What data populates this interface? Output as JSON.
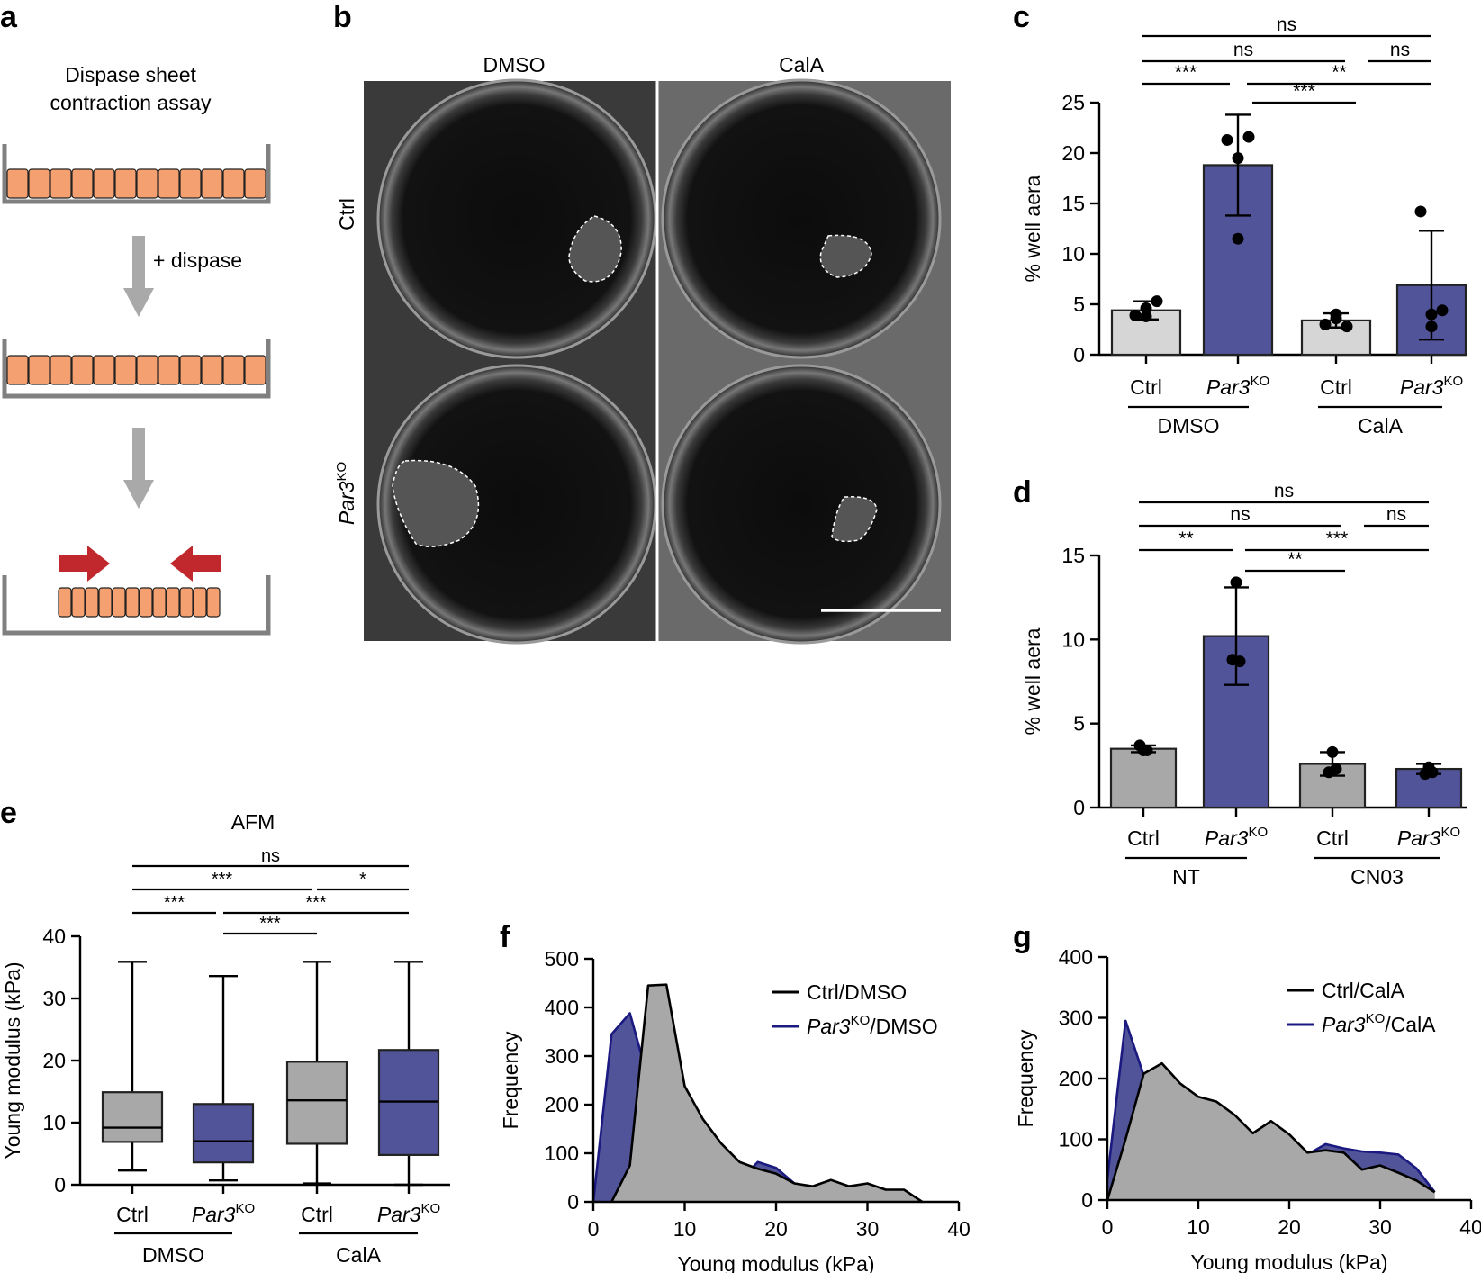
{
  "panel_a": {
    "label": "a",
    "title_line1": "Dispase sheet",
    "title_line2": "contraction assay",
    "step_label": "+ dispase",
    "colors": {
      "cell": "#f4a070",
      "dish": "#808080",
      "arrow_grey": "#a9a9a9",
      "arrow_red": "#c0282d"
    }
  },
  "panel_b": {
    "label": "b",
    "col_labels": [
      "DMSO",
      "CalA"
    ],
    "row_label_ctrl": "Ctrl",
    "row_label_par3": "Par3",
    "row_label_par3_sup": "KO"
  },
  "chart_data": [
    {
      "panel": "c",
      "type": "bar",
      "categories": [
        "Ctrl",
        "Par3KO",
        "Ctrl",
        "Par3KO"
      ],
      "category_main": [
        "Ctrl",
        "Par3",
        "Ctrl",
        "Par3"
      ],
      "category_sup": [
        "",
        "KO",
        "",
        "KO"
      ],
      "group_labels": [
        "DMSO",
        "CalA"
      ],
      "values": [
        4.4,
        18.8,
        3.4,
        6.9
      ],
      "errors": [
        0.9,
        5.0,
        0.7,
        5.4
      ],
      "points": [
        [
          3.9,
          5.3,
          3.8,
          4.6
        ],
        [
          21.3,
          21.6,
          19.5,
          11.5
        ],
        [
          3.0,
          2.8,
          4.0,
          3.6
        ],
        [
          14.2,
          4.4,
          4.0,
          2.8
        ]
      ],
      "bar_colors": [
        "#d6d6d6",
        "#52549a",
        "#d6d6d6",
        "#52549a"
      ],
      "ylabel": "% well aera",
      "ylim": [
        0,
        25
      ],
      "yticks": [
        0,
        5,
        10,
        15,
        20,
        25
      ],
      "significance": [
        {
          "from": 0,
          "to": 3,
          "label": "ns"
        },
        {
          "from": 0,
          "to": 2,
          "label": "ns"
        },
        {
          "from": 2,
          "to": 3,
          "label": "ns"
        },
        {
          "from": 0,
          "to": 1,
          "label": "***"
        },
        {
          "from": 1,
          "to": 3,
          "label": "**"
        },
        {
          "from": 1,
          "to": 2,
          "label": "***"
        }
      ]
    },
    {
      "panel": "d",
      "type": "bar",
      "categories": [
        "Ctrl",
        "Par3KO",
        "Ctrl",
        "Par3KO"
      ],
      "category_main": [
        "Ctrl",
        "Par3",
        "Ctrl",
        "Par3"
      ],
      "category_sup": [
        "",
        "KO",
        "",
        "KO"
      ],
      "group_labels": [
        "NT",
        "CN03"
      ],
      "values": [
        3.5,
        10.2,
        2.6,
        2.3
      ],
      "errors": [
        0.2,
        2.9,
        0.7,
        0.3
      ],
      "points": [
        [
          3.4,
          3.7,
          3.4
        ],
        [
          13.4,
          8.8,
          8.7
        ],
        [
          3.3,
          2.1,
          2.3
        ],
        [
          2.4,
          2.0,
          2.1
        ]
      ],
      "bar_colors": [
        "#a8a8a8",
        "#52549a",
        "#a8a8a8",
        "#52549a"
      ],
      "ylabel": "% well aera",
      "ylim": [
        0,
        15
      ],
      "yticks": [
        0,
        5,
        10,
        15
      ],
      "significance": [
        {
          "from": 0,
          "to": 3,
          "label": "ns"
        },
        {
          "from": 0,
          "to": 2,
          "label": "ns"
        },
        {
          "from": 2,
          "to": 3,
          "label": "ns"
        },
        {
          "from": 0,
          "to": 1,
          "label": "**"
        },
        {
          "from": 1,
          "to": 3,
          "label": "***"
        },
        {
          "from": 1,
          "to": 2,
          "label": "**"
        }
      ]
    },
    {
      "panel": "e",
      "type": "box",
      "title": "AFM",
      "categories": [
        "Ctrl",
        "Par3KO",
        "Ctrl",
        "Par3KO"
      ],
      "category_main": [
        "Ctrl",
        "Par3",
        "Ctrl",
        "Par3"
      ],
      "category_sup": [
        "",
        "KO",
        "",
        "KO"
      ],
      "group_labels": [
        "DMSO",
        "CalA"
      ],
      "boxes": [
        {
          "min": 2.3,
          "q1": 6.9,
          "median": 9.2,
          "q3": 14.9,
          "max": 35.9
        },
        {
          "min": 0.7,
          "q1": 3.6,
          "median": 7.0,
          "q3": 13.0,
          "max": 33.6
        },
        {
          "min": 0.2,
          "q1": 6.6,
          "median": 13.6,
          "q3": 19.8,
          "max": 35.9
        },
        {
          "min": 0.0,
          "q1": 4.8,
          "median": 13.4,
          "q3": 21.7,
          "max": 35.9
        }
      ],
      "box_colors": [
        "#a8a8a8",
        "#52549a",
        "#a8a8a8",
        "#52549a"
      ],
      "ylabel": "Young modulus (kPa)",
      "ylim": [
        0,
        40
      ],
      "yticks": [
        0,
        10,
        20,
        30,
        40
      ],
      "significance": [
        {
          "from": 0,
          "to": 3,
          "label": "ns"
        },
        {
          "from": 0,
          "to": 2,
          "label": "***"
        },
        {
          "from": 2,
          "to": 3,
          "label": "*"
        },
        {
          "from": 0,
          "to": 1,
          "label": "***"
        },
        {
          "from": 1,
          "to": 3,
          "label": "***"
        },
        {
          "from": 1,
          "to": 2,
          "label": "***"
        }
      ]
    },
    {
      "panel": "f",
      "type": "area",
      "xlabel": "Young modulus (kPa)",
      "ylabel": "Frequency",
      "xlim": [
        0,
        40
      ],
      "ylim": [
        0,
        500
      ],
      "xticks": [
        0,
        10,
        20,
        30,
        40
      ],
      "yticks": [
        0,
        100,
        200,
        300,
        400,
        500
      ],
      "series": [
        {
          "name": "Par3KO/DMSO",
          "name_main": "Par3",
          "name_sup": "KO",
          "name_rest": "/DMSO",
          "color": "#1a1a80",
          "fill": "#52549a",
          "x": [
            0,
            2,
            4,
            6,
            8,
            10,
            12,
            14,
            16,
            18,
            20,
            22,
            24,
            26,
            28,
            30,
            32,
            34,
            36
          ],
          "y": [
            0,
            345,
            388,
            252,
            188,
            175,
            130,
            45,
            42,
            82,
            70,
            38,
            30,
            20,
            32,
            35,
            3,
            10,
            0
          ]
        },
        {
          "name": "Ctrl/DMSO",
          "name_main": "Ctrl/DMSO",
          "name_sup": "",
          "name_rest": "",
          "color": "#000000",
          "fill": "#a8a8a8",
          "x": [
            2,
            4,
            6,
            8,
            10,
            12,
            14,
            16,
            18,
            20,
            22,
            24,
            26,
            28,
            30,
            32,
            34,
            36
          ],
          "y": [
            0,
            75,
            445,
            447,
            238,
            170,
            120,
            82,
            68,
            58,
            38,
            32,
            45,
            32,
            38,
            25,
            25,
            0
          ]
        }
      ]
    },
    {
      "panel": "g",
      "type": "area",
      "xlabel": "Young modulus (kPa)",
      "ylabel": "Frequency",
      "xlim": [
        0,
        40
      ],
      "ylim": [
        0,
        400
      ],
      "xticks": [
        0,
        10,
        20,
        30,
        40
      ],
      "yticks": [
        0,
        100,
        200,
        300,
        400
      ],
      "series": [
        {
          "name": "Par3KO/CalA",
          "name_main": "Par3",
          "name_sup": "KO",
          "name_rest": "/CalA",
          "color": "#1a1a80",
          "fill": "#52549a",
          "x": [
            0,
            2,
            4,
            6,
            8,
            10,
            12,
            14,
            16,
            18,
            20,
            22,
            24,
            26,
            28,
            30,
            32,
            34,
            36
          ],
          "y": [
            35,
            295,
            205,
            200,
            128,
            120,
            132,
            100,
            100,
            95,
            95,
            75,
            92,
            85,
            80,
            78,
            75,
            52,
            13
          ]
        },
        {
          "name": "Ctrl/CalA",
          "name_main": "Ctrl/CalA",
          "name_sup": "",
          "name_rest": "",
          "color": "#000000",
          "fill": "#a8a8a8",
          "x": [
            0,
            2,
            4,
            6,
            8,
            10,
            12,
            14,
            16,
            18,
            20,
            22,
            24,
            26,
            28,
            30,
            32,
            34,
            36
          ],
          "y": [
            0,
            100,
            208,
            225,
            192,
            170,
            162,
            140,
            110,
            130,
            108,
            78,
            82,
            78,
            50,
            57,
            45,
            32,
            13
          ]
        }
      ]
    }
  ]
}
